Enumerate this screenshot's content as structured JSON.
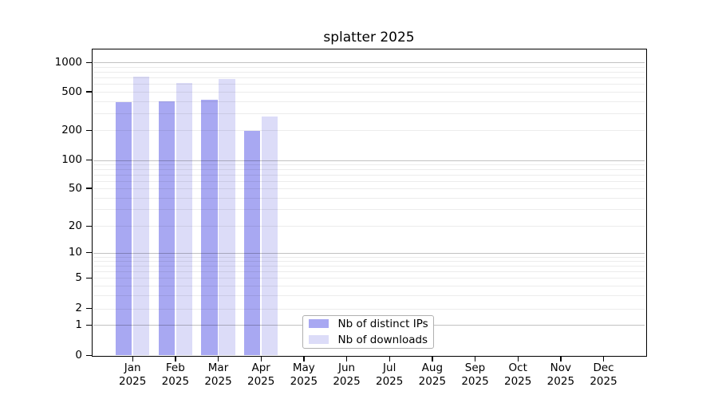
{
  "chart_data": {
    "type": "bar",
    "title": "splatter 2025",
    "categories": [
      "Jan 2025",
      "Feb 2025",
      "Mar 2025",
      "Apr 2025",
      "May 2025",
      "Jun 2025",
      "Jul 2025",
      "Aug 2025",
      "Sep 2025",
      "Oct 2025",
      "Nov 2025",
      "Dec 2025"
    ],
    "series": [
      {
        "name": "Nb of distinct IPs",
        "color": "#a8a8f2",
        "values": [
          390,
          400,
          410,
          196,
          0,
          0,
          0,
          0,
          0,
          0,
          0,
          0
        ]
      },
      {
        "name": "Nb of downloads",
        "color": "#dcdcf8",
        "values": [
          710,
          620,
          675,
          280,
          0,
          0,
          0,
          0,
          0,
          0,
          0,
          0
        ]
      }
    ],
    "xlabel": "",
    "ylabel": "",
    "yscale": "log above 1, linear segment 0-1 (symlog-style)",
    "yticks": [
      0,
      1,
      2,
      5,
      10,
      20,
      50,
      100,
      200,
      500,
      1000
    ],
    "ylim": [
      0,
      1400
    ],
    "grid": "horizontal: major lines at 1,10,100,1000; faint minor log lines at 2-9 multiples",
    "legend_position": "inside axes, bottom center"
  },
  "colors": {
    "background": "#ffffff",
    "spine": "#000000",
    "major_grid": "#c3c3c3",
    "minor_grid": "#ececec",
    "legend_border": "#b0b0b0",
    "bar_distinct_ips": "#a8a8f2",
    "bar_downloads": "#dcdcf8"
  }
}
